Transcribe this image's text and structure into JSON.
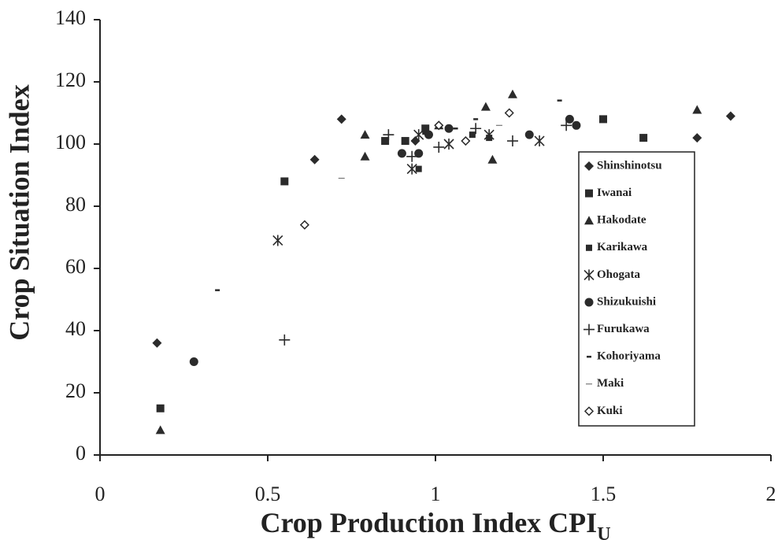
{
  "chart_data": {
    "type": "scatter",
    "x_label": "Crop Production Index CPI",
    "x_label_subscript": "U",
    "y_label": "Crop Situation  Index",
    "xlim": [
      0,
      2
    ],
    "xticks": [
      0,
      0.5,
      1,
      1.5,
      2
    ],
    "ylim": [
      0,
      140
    ],
    "yticks": [
      0,
      20,
      40,
      60,
      80,
      100,
      120,
      140
    ],
    "grid": false,
    "legend": "right",
    "series": [
      {
        "name": "Shinshinotsu",
        "color": "#2b2b2b",
        "marker": "diamond",
        "x": [
          0.17,
          0.64,
          0.72,
          0.94,
          1.78,
          1.88
        ],
        "y": [
          36,
          95,
          108,
          101,
          102,
          109
        ]
      },
      {
        "name": "Iwanai",
        "color": "#2b2b2b",
        "marker": "square",
        "x": [
          0.18,
          0.55,
          0.85,
          0.91,
          0.97,
          1.5,
          1.62
        ],
        "y": [
          15,
          88,
          101,
          101,
          105,
          108,
          102
        ]
      },
      {
        "name": "Hakodate",
        "color": "#2b2b2b",
        "marker": "triangle",
        "x": [
          0.18,
          0.79,
          0.79,
          1.01,
          1.15,
          1.17,
          1.23,
          1.78
        ],
        "y": [
          8,
          103,
          96,
          106,
          112,
          95,
          116,
          111
        ]
      },
      {
        "name": "Karikawa",
        "color": "#2b2b2b",
        "marker": "small-square",
        "x": [
          0.95,
          0.97,
          1.11,
          1.16
        ],
        "y": [
          92,
          104,
          103,
          102
        ]
      },
      {
        "name": "Ohogata",
        "color": "#2b2b2b",
        "marker": "asterisk",
        "x": [
          0.53,
          0.93,
          0.95,
          1.04,
          1.16,
          1.31
        ],
        "y": [
          69,
          92,
          103,
          100,
          103,
          101
        ]
      },
      {
        "name": "Shizukuishi",
        "color": "#2b2b2b",
        "marker": "circle",
        "x": [
          0.28,
          0.9,
          0.95,
          0.98,
          1.04,
          1.28,
          1.4,
          1.42
        ],
        "y": [
          30,
          97,
          97,
          103,
          105,
          103,
          108,
          106
        ]
      },
      {
        "name": "Furukawa",
        "color": "#2b2b2b",
        "marker": "plus",
        "x": [
          0.55,
          0.86,
          0.93,
          1.01,
          1.12,
          1.23,
          1.39
        ],
        "y": [
          37,
          103,
          96,
          99,
          105,
          101,
          106
        ]
      },
      {
        "name": "Kohoriyama",
        "color": "#2b2b2b",
        "marker": "dash",
        "x": [
          0.35,
          1.06,
          1.12,
          1.37
        ],
        "y": [
          53,
          105,
          108,
          114
        ]
      },
      {
        "name": "Maki",
        "color": "#777777",
        "marker": "thin-dash",
        "x": [
          0.72,
          1.19
        ],
        "y": [
          89,
          106
        ]
      },
      {
        "name": "Kuki",
        "color": "#2b2b2b",
        "marker": "open-diamond",
        "x": [
          0.61,
          1.01,
          1.09,
          1.22
        ],
        "y": [
          74,
          106,
          101,
          110
        ]
      }
    ]
  }
}
